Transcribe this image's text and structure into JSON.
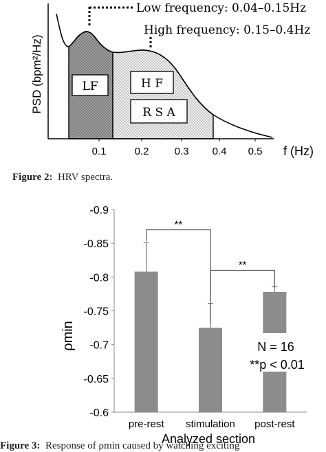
{
  "figure2": {
    "caption_label": "Figure 2",
    "caption_sep": ":",
    "caption_text": "HRV spectra.",
    "low_freq_label": "Low frequency: 0.04–0.15Hz",
    "high_freq_label": "High frequency: 0.15–0.4Hz",
    "band_labels": {
      "lf": "LF",
      "hf": "H F",
      "rsa": "R S A"
    },
    "y_label": "PSD (bpm²/Hz)",
    "x_label": "f (Hz)",
    "x_ticks": [
      "0.1",
      "0.2",
      "0.3",
      "0.4",
      "0.5"
    ],
    "colors": {
      "lf_fill": "#8a8a8a",
      "hf_fill": "#e6e6e6",
      "curve": "#000000"
    }
  },
  "figure3": {
    "caption_label": "Figure 3",
    "caption_sep": ":",
    "caption_text": "Response of ρmin caused by watching exciting",
    "chart_data": {
      "type": "bar",
      "categories": [
        "pre-rest",
        "stimulation",
        "post-rest"
      ],
      "values": [
        -0.808,
        -0.725,
        -0.778
      ],
      "error_upper": [
        -0.851,
        -0.761,
        -0.786
      ],
      "ylim": [
        -0.6,
        -0.9
      ],
      "yticks": [
        "-0.9",
        "-0.85",
        "-0.8",
        "-0.75",
        "-0.7",
        "-0.65",
        "-0.6"
      ],
      "ylabel": "ρmin",
      "xlabel": "Analyzed section",
      "significance": [
        {
          "from": "pre-rest",
          "to": "stimulation",
          "label": "**"
        },
        {
          "from": "stimulation",
          "to": "post-rest",
          "label": "**"
        }
      ],
      "annotations": [
        "N = 16",
        "**p < 0.01"
      ],
      "bar_color": "#8c8c8c",
      "grid": false
    }
  }
}
